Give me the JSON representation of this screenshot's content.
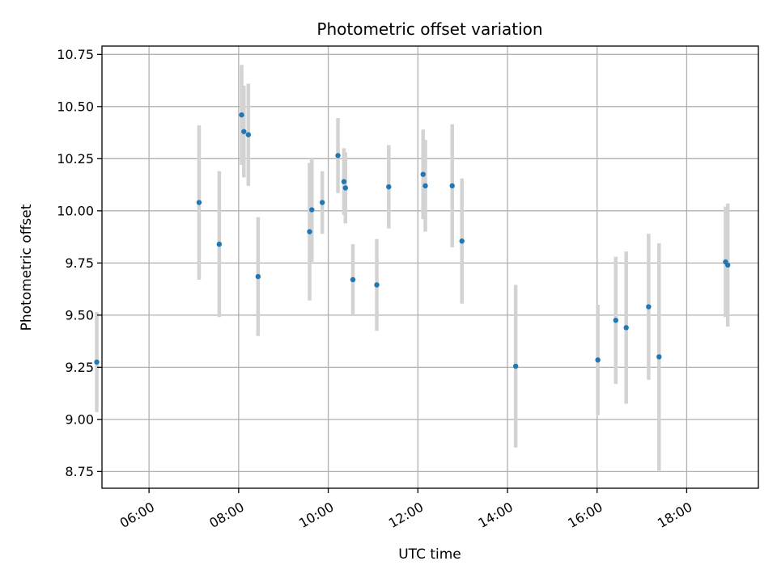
{
  "chart_data": {
    "type": "scatter",
    "title": "Photometric offset variation",
    "xlabel": "UTC time",
    "ylabel": "Photometric offset",
    "xlim": [
      "04:57",
      "19:36"
    ],
    "ylim": [
      8.67,
      10.79
    ],
    "grid": true,
    "xticks": [
      "06:00",
      "08:00",
      "10:00",
      "12:00",
      "14:00",
      "16:00",
      "18:00"
    ],
    "yticks": [
      8.75,
      9.0,
      9.25,
      9.5,
      9.75,
      10.0,
      10.25,
      10.5,
      10.75
    ],
    "ytick_labels": [
      "8.75",
      "9.00",
      "9.25",
      "9.50",
      "9.75",
      "10.00",
      "10.25",
      "10.50",
      "10.75"
    ],
    "colors": {
      "point": "#1f77b4",
      "errorbar": "#d3d3d3",
      "grid": "#b0b0b0",
      "axes": "#000000"
    },
    "series": [
      {
        "points": [
          {
            "time": "04:50",
            "y": 9.275,
            "err": 0.24
          },
          {
            "time": "07:07",
            "y": 10.04,
            "err": 0.37
          },
          {
            "time": "07:34",
            "y": 9.84,
            "err": 0.35
          },
          {
            "time": "08:04",
            "y": 10.46,
            "err": 0.24
          },
          {
            "time": "08:07",
            "y": 10.38,
            "err": 0.22
          },
          {
            "time": "08:13",
            "y": 10.365,
            "err": 0.245
          },
          {
            "time": "08:26",
            "y": 9.685,
            "err": 0.285
          },
          {
            "time": "09:35",
            "y": 9.9,
            "err": 0.33
          },
          {
            "time": "09:38",
            "y": 10.005,
            "err": 0.25
          },
          {
            "time": "09:52",
            "y": 10.04,
            "err": 0.15
          },
          {
            "time": "10:13",
            "y": 10.265,
            "err": 0.18
          },
          {
            "time": "10:21",
            "y": 10.14,
            "err": 0.16
          },
          {
            "time": "10:23",
            "y": 10.11,
            "err": 0.17
          },
          {
            "time": "10:33",
            "y": 9.67,
            "err": 0.17
          },
          {
            "time": "11:05",
            "y": 9.645,
            "err": 0.22
          },
          {
            "time": "11:21",
            "y": 10.115,
            "err": 0.2
          },
          {
            "time": "12:07",
            "y": 10.175,
            "err": 0.215
          },
          {
            "time": "12:10",
            "y": 10.12,
            "err": 0.22
          },
          {
            "time": "12:46",
            "y": 10.12,
            "err": 0.295
          },
          {
            "time": "12:59",
            "y": 9.855,
            "err": 0.3
          },
          {
            "time": "14:11",
            "y": 9.255,
            "err": 0.39
          },
          {
            "time": "16:01",
            "y": 9.285,
            "err": 0.265
          },
          {
            "time": "16:25",
            "y": 9.475,
            "err": 0.305
          },
          {
            "time": "16:39",
            "y": 9.44,
            "err": 0.365
          },
          {
            "time": "17:09",
            "y": 9.54,
            "err": 0.35
          },
          {
            "time": "17:23",
            "y": 9.3,
            "err": 0.545
          },
          {
            "time": "18:52",
            "y": 9.755,
            "err": 0.265
          },
          {
            "time": "18:55",
            "y": 9.74,
            "err": 0.295
          }
        ]
      }
    ]
  }
}
